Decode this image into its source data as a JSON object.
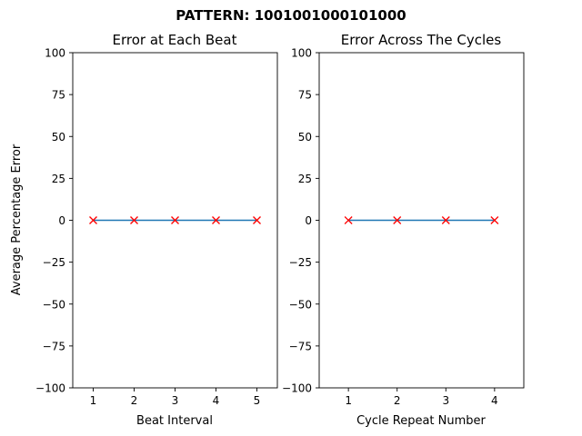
{
  "suptitle": "PATTERN: 1001001000101000",
  "colors": {
    "line": "#1f77b4",
    "marker": "#ff0000",
    "axis": "#000000"
  },
  "chart_data": [
    {
      "type": "line",
      "title": "Error at Each Beat",
      "xlabel": "Beat Interval",
      "ylabel": "Average Percentage Error",
      "xlim": [
        0.5,
        5.5
      ],
      "ylim": [
        -100,
        100
      ],
      "xticks": [
        1,
        2,
        3,
        4,
        5
      ],
      "yticks": [
        -100,
        -75,
        -50,
        -25,
        0,
        25,
        50,
        75,
        100
      ],
      "x": [
        1,
        2,
        3,
        4,
        5
      ],
      "y": [
        0,
        0,
        0,
        0,
        0
      ],
      "marker": "x",
      "grid": false
    },
    {
      "type": "line",
      "title": "Error Across The Cycles",
      "xlabel": "Cycle Repeat Number",
      "ylabel": "",
      "xlim": [
        0.4,
        4.6
      ],
      "ylim": [
        -100,
        100
      ],
      "xticks": [
        1,
        2,
        3,
        4
      ],
      "yticks": [
        -100,
        -75,
        -50,
        -25,
        0,
        25,
        50,
        75,
        100
      ],
      "x": [
        1,
        2,
        3,
        4
      ],
      "y": [
        0,
        0,
        0,
        0
      ],
      "marker": "x",
      "grid": false
    }
  ]
}
